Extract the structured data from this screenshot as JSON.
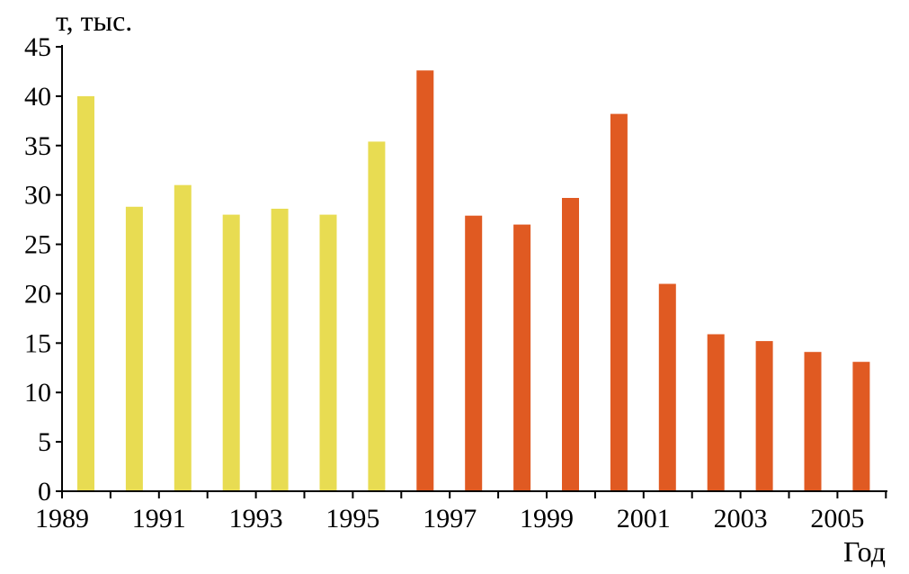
{
  "chart_data": {
    "type": "bar",
    "title": "",
    "ylabel": "т, тыс.",
    "xlabel": "Год",
    "ylim": [
      0,
      45
    ],
    "yticks": [
      0,
      5,
      10,
      15,
      20,
      25,
      30,
      35,
      40,
      45
    ],
    "categories": [
      "1989",
      "1990",
      "1991",
      "1992",
      "1993",
      "1994",
      "1995",
      "1996",
      "1997",
      "1998",
      "1999",
      "2000",
      "2001",
      "2002",
      "2003",
      "2004",
      "2005"
    ],
    "x_tick_labels": [
      "1989",
      "1991",
      "1993",
      "1995",
      "1997",
      "1999",
      "2001",
      "2003",
      "2005"
    ],
    "values": [
      40.0,
      28.8,
      31.0,
      28.0,
      28.6,
      28.0,
      35.4,
      42.6,
      27.9,
      27.0,
      29.7,
      38.2,
      21.0,
      15.9,
      15.2,
      14.1,
      13.1
    ],
    "bar_colors": [
      "#e8dc52",
      "#e8dc52",
      "#e8dc52",
      "#e8dc52",
      "#e8dc52",
      "#e8dc52",
      "#e8dc52",
      "#e05a22",
      "#e05a22",
      "#e05a22",
      "#e05a22",
      "#e05a22",
      "#e05a22",
      "#e05a22",
      "#e05a22",
      "#e05a22",
      "#e05a22"
    ],
    "grid": false,
    "legend": "none"
  }
}
